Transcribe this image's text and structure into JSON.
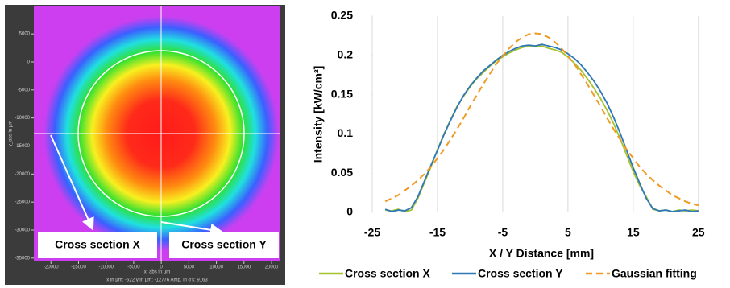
{
  "beam_image": {
    "xlabel": "x_abs in µm",
    "ylabel": "y_abs in µm",
    "xlim": [
      -23100,
      21600
    ],
    "ylim": [
      -35600,
      9900
    ],
    "xticks": [
      -20000,
      -15000,
      -10000,
      -5000,
      0,
      5000,
      10000,
      15000,
      20000
    ],
    "yticks": [
      5000,
      0,
      -5000,
      -10000,
      -15000,
      -20000,
      -25000,
      -30000,
      -35000
    ],
    "status": "x in µm:  -522   y in µm:  -12776   Amp. in d's:  9163",
    "annotations": [
      "Cross section X",
      "Cross section Y"
    ]
  },
  "chart_data": {
    "type": "line",
    "xlabel": "X / Y Distance [mm]",
    "ylabel": "Intensity [kW/cm²]",
    "xlim": [
      -25,
      27
    ],
    "xticks": [
      -25,
      -15,
      -5,
      5,
      15,
      25
    ],
    "ylim": [
      0,
      0.25
    ],
    "yticks": [
      0,
      0.05,
      0.1,
      0.15,
      0.2,
      0.25
    ],
    "grid": "x",
    "legend": "bottom",
    "x": [
      -23,
      -22,
      -21,
      -20,
      -19,
      -18,
      -17,
      -16,
      -15,
      -14,
      -13,
      -12,
      -11,
      -10,
      -9,
      -8,
      -7,
      -6,
      -5,
      -4,
      -3,
      -2,
      -1,
      0,
      1,
      2,
      3,
      4,
      5,
      6,
      7,
      8,
      9,
      10,
      11,
      12,
      13,
      14,
      15,
      16,
      17,
      18,
      19,
      20,
      21,
      22,
      23,
      24,
      25
    ],
    "series": [
      {
        "name": "Cross section X",
        "color": "#a5c22f",
        "dashed": false,
        "values": [
          0.003,
          0.002,
          0.004,
          0.001,
          0.003,
          0.018,
          0.038,
          0.058,
          0.08,
          0.1,
          0.118,
          0.135,
          0.148,
          0.16,
          0.17,
          0.178,
          0.186,
          0.193,
          0.198,
          0.203,
          0.207,
          0.21,
          0.212,
          0.211,
          0.212,
          0.209,
          0.207,
          0.204,
          0.198,
          0.19,
          0.181,
          0.17,
          0.158,
          0.145,
          0.13,
          0.113,
          0.094,
          0.073,
          0.052,
          0.034,
          0.02,
          0.004,
          0.002,
          0.003,
          0.001,
          0.003,
          0.002,
          0.003,
          0.002
        ]
      },
      {
        "name": "Cross section Y",
        "color": "#2e78b7",
        "dashed": false,
        "values": [
          0.004,
          0.001,
          0.003,
          0.002,
          0.006,
          0.02,
          0.04,
          0.06,
          0.079,
          0.099,
          0.117,
          0.134,
          0.149,
          0.161,
          0.171,
          0.18,
          0.187,
          0.194,
          0.2,
          0.205,
          0.209,
          0.212,
          0.213,
          0.212,
          0.214,
          0.212,
          0.21,
          0.207,
          0.202,
          0.196,
          0.188,
          0.178,
          0.167,
          0.154,
          0.139,
          0.121,
          0.101,
          0.079,
          0.057,
          0.037,
          0.018,
          0.005,
          0.002,
          0.003,
          0.001,
          0.002,
          0.003,
          0.001,
          0.002
        ]
      },
      {
        "name": "Gaussian fitting",
        "color": "#ef9a22",
        "dashed": true,
        "values": [
          0.014,
          0.018,
          0.022,
          0.028,
          0.034,
          0.041,
          0.049,
          0.058,
          0.069,
          0.08,
          0.093,
          0.106,
          0.12,
          0.135,
          0.149,
          0.163,
          0.176,
          0.189,
          0.199,
          0.209,
          0.217,
          0.223,
          0.227,
          0.228,
          0.227,
          0.223,
          0.217,
          0.209,
          0.199,
          0.189,
          0.176,
          0.163,
          0.149,
          0.135,
          0.12,
          0.106,
          0.093,
          0.08,
          0.069,
          0.058,
          0.049,
          0.041,
          0.034,
          0.028,
          0.022,
          0.018,
          0.014,
          0.011,
          0.009
        ]
      }
    ]
  }
}
